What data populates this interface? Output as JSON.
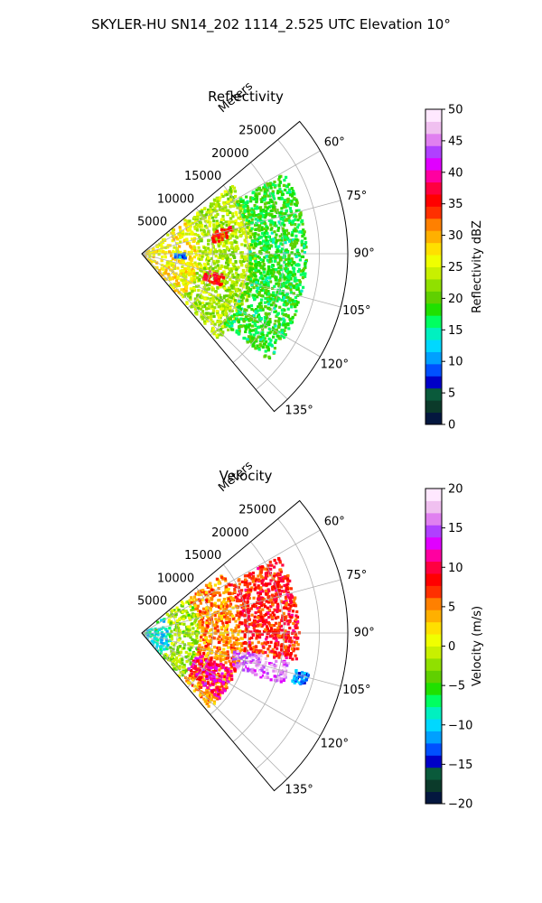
{
  "suptitle": "SKYLER-HU  SN14_202  1114_2.525 UTC Elevation 10°",
  "chart_data": [
    {
      "type": "polar-sector",
      "title": "Reflectivity",
      "radial_label": "Meters",
      "radial_ticks": [
        5000,
        10000,
        15000,
        20000,
        25000
      ],
      "radial_tick_labels": [
        "5000",
        "10000",
        "15000",
        "20000",
        "25000"
      ],
      "rmax": 29000,
      "theta_range_deg": [
        50,
        140
      ],
      "theta_ticks_deg": [
        60,
        75,
        90,
        105,
        120,
        135
      ],
      "theta_tick_labels": [
        "60°",
        "75°",
        "90°",
        "105°",
        "120°",
        "135°"
      ],
      "grid": true,
      "colorbar": {
        "label": "Reflectivity dBZ",
        "range": [
          0,
          50
        ],
        "ticks": [
          0,
          5,
          10,
          15,
          20,
          25,
          30,
          35,
          40,
          45,
          50
        ],
        "tick_labels": [
          "0",
          "5",
          "10",
          "15",
          "20",
          "25",
          "30",
          "35",
          "40",
          "45",
          "50"
        ],
        "colors": [
          "#04173f",
          "#0b3a2a",
          "#0a5a3b",
          "#0000c8",
          "#0050ff",
          "#00a0ff",
          "#00d8ff",
          "#00f0c0",
          "#00ff60",
          "#20e000",
          "#60d000",
          "#90e000",
          "#c8f000",
          "#f0ff00",
          "#ffe000",
          "#ffb000",
          "#ff8000",
          "#ff3000",
          "#ff0000",
          "#ff0040",
          "#ff00a0",
          "#e000ff",
          "#b040ff",
          "#e080f0",
          "#f0c0f0",
          "#ffe8ff"
        ]
      },
      "field_regions": [
        {
          "r": [
            0,
            8000
          ],
          "theta": [
            50,
            140
          ],
          "value": 27
        },
        {
          "r": [
            8000,
            16000
          ],
          "theta": [
            52,
            138
          ],
          "value": 23
        },
        {
          "r": [
            10000,
            13000
          ],
          "theta": [
            72,
            80
          ],
          "value": 35
        },
        {
          "r": [
            9000,
            12000
          ],
          "theta": [
            104,
            112
          ],
          "value": 35
        },
        {
          "r": [
            15000,
            23000
          ],
          "theta": [
            60,
            130
          ],
          "value": 18
        },
        {
          "r": [
            4500,
            6000
          ],
          "theta": [
            88,
            94
          ],
          "value": 10
        }
      ]
    },
    {
      "type": "polar-sector",
      "title": "Velocity",
      "radial_label": "Meters",
      "radial_ticks": [
        5000,
        10000,
        15000,
        20000,
        25000
      ],
      "radial_tick_labels": [
        "5000",
        "10000",
        "15000",
        "20000",
        "25000"
      ],
      "rmax": 29000,
      "theta_range_deg": [
        50,
        140
      ],
      "theta_ticks_deg": [
        60,
        75,
        90,
        105,
        120,
        135
      ],
      "theta_tick_labels": [
        "60°",
        "75°",
        "90°",
        "105°",
        "120°",
        "135°"
      ],
      "grid": true,
      "colorbar": {
        "label": "Velocity (m/s)",
        "range": [
          -20,
          20
        ],
        "ticks": [
          -20,
          -15,
          -10,
          -5,
          0,
          5,
          10,
          15,
          20
        ],
        "tick_labels": [
          "−20",
          "−15",
          "−10",
          "−5",
          "0",
          "5",
          "10",
          "15",
          "20"
        ],
        "colors": [
          "#04173f",
          "#0b3a2a",
          "#0a5a3b",
          "#0000c8",
          "#0050ff",
          "#00a0ff",
          "#00d8ff",
          "#00f0c0",
          "#00ff60",
          "#20e000",
          "#60d000",
          "#90e000",
          "#c8f000",
          "#f0ff00",
          "#ffe000",
          "#ffb000",
          "#ff8000",
          "#ff3000",
          "#ff0000",
          "#ff0040",
          "#ff00a0",
          "#e000ff",
          "#b040ff",
          "#e080f0",
          "#f0c0f0",
          "#ffe8ff"
        ]
      },
      "field_regions": [
        {
          "r": [
            0,
            4000
          ],
          "theta": [
            50,
            140
          ],
          "value": -9
        },
        {
          "r": [
            4000,
            8000
          ],
          "theta": [
            50,
            140
          ],
          "value": -2
        },
        {
          "r": [
            8000,
            14000
          ],
          "theta": [
            52,
            138
          ],
          "value": 5
        },
        {
          "r": [
            14000,
            22000
          ],
          "theta": [
            60,
            100
          ],
          "value": 8
        },
        {
          "r": [
            13000,
            21000
          ],
          "theta": [
            100,
            110
          ],
          "value": 16
        },
        {
          "r": [
            22000,
            24000
          ],
          "theta": [
            103,
            108
          ],
          "value": -12
        },
        {
          "r": [
            8000,
            14000
          ],
          "theta": [
            110,
            130
          ],
          "value": 11
        }
      ]
    }
  ]
}
